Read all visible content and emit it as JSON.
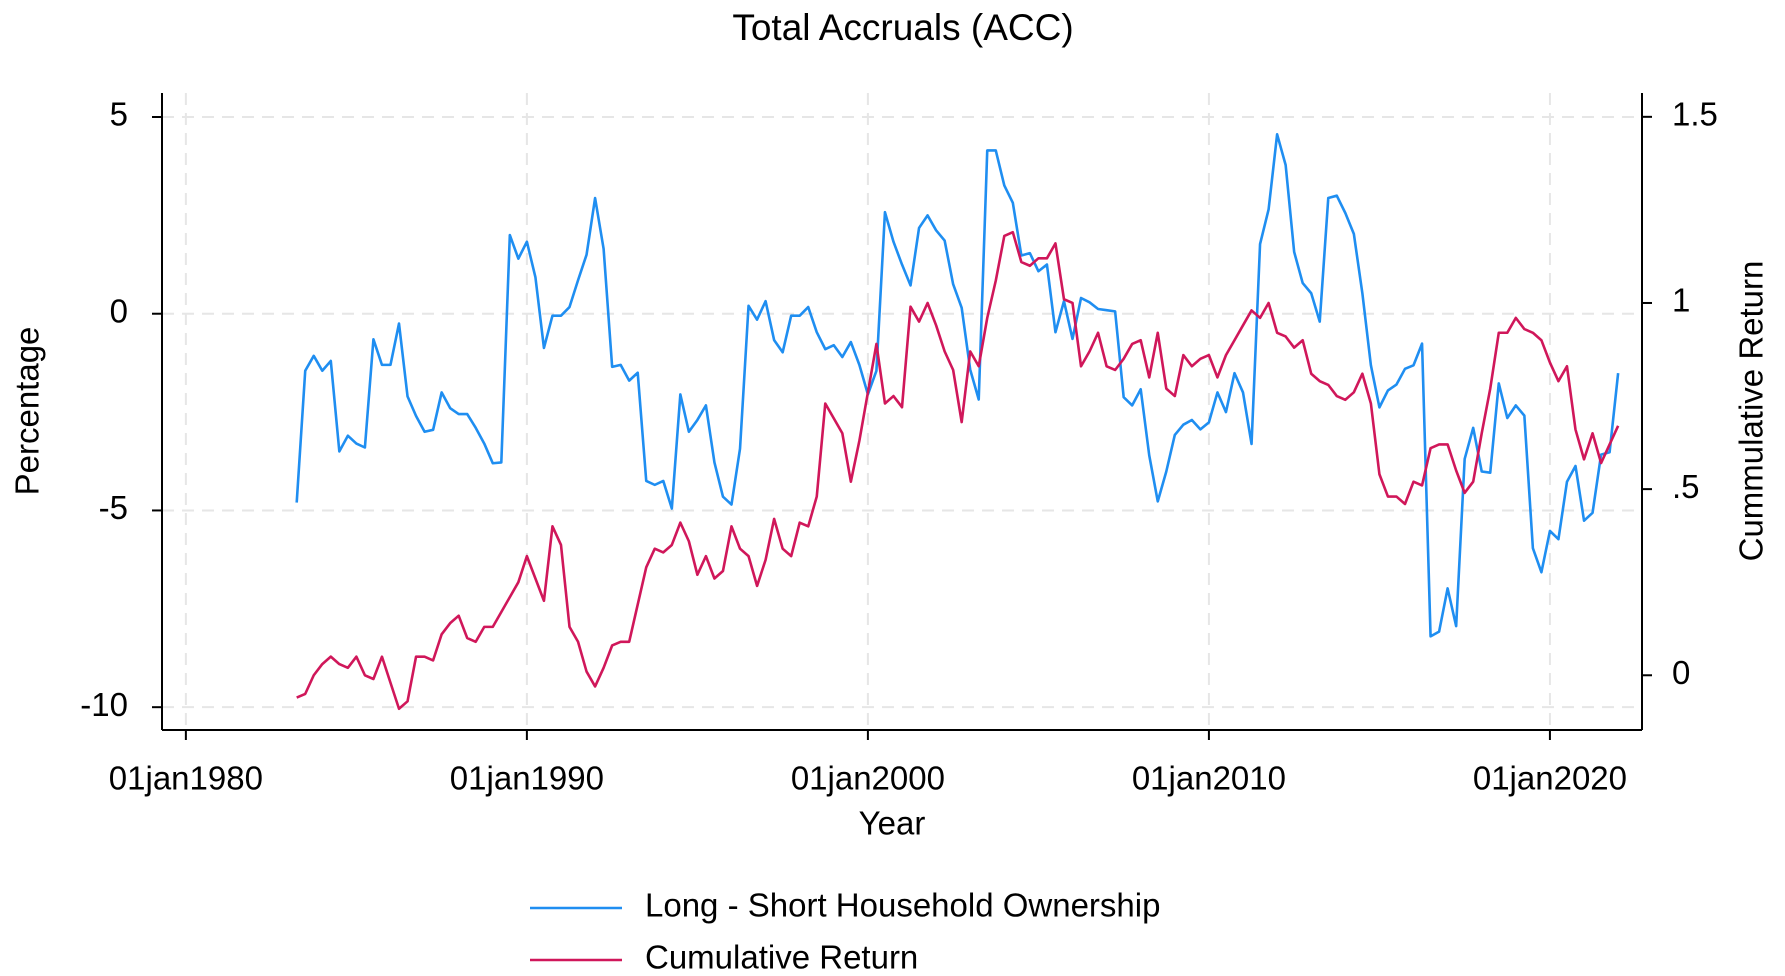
{
  "chart_data": {
    "type": "line",
    "title": "Total Accruals (ACC)",
    "x_label": "Year",
    "y_label": "Percentage",
    "y2_label": "Cummulative Return",
    "xlim": [
      1979.3,
      2022.7
    ],
    "ylim": [
      -10.58,
      5.61
    ],
    "y2lim": [
      -0.147,
      1.564
    ],
    "xticks": [
      {
        "value": 1980,
        "label": "01jan1980"
      },
      {
        "value": 1990,
        "label": "01jan1990"
      },
      {
        "value": 2000,
        "label": "01jan2000"
      },
      {
        "value": 2010,
        "label": "01jan2010"
      },
      {
        "value": 2020,
        "label": "01jan2020"
      }
    ],
    "yticks": [
      5,
      0,
      -5,
      -10
    ],
    "y2ticks": [
      1.5,
      1,
      {
        "value": 0.5,
        "label": ".5"
      },
      0
    ],
    "grid": true,
    "legend": "bottom",
    "x": [
      1983.25,
      1983.5,
      1983.75,
      1984,
      1984.25,
      1984.5,
      1984.75,
      1985,
      1985.25,
      1985.5,
      1985.75,
      1986,
      1986.25,
      1986.5,
      1986.75,
      1987,
      1987.25,
      1987.5,
      1987.75,
      1988,
      1988.25,
      1988.5,
      1988.75,
      1989,
      1989.25,
      1989.5,
      1989.75,
      1990,
      1990.25,
      1990.5,
      1990.75,
      1991,
      1991.25,
      1991.5,
      1991.75,
      1992,
      1992.25,
      1992.5,
      1992.75,
      1993,
      1993.25,
      1993.5,
      1993.75,
      1994,
      1994.25,
      1994.5,
      1994.75,
      1995,
      1995.25,
      1995.5,
      1995.75,
      1996,
      1996.25,
      1996.5,
      1996.75,
      1997,
      1997.25,
      1997.5,
      1997.75,
      1998,
      1998.25,
      1998.5,
      1998.75,
      1999,
      1999.25,
      1999.5,
      1999.75,
      2000,
      2000.25,
      2000.5,
      2000.75,
      2001,
      2001.25,
      2001.5,
      2001.75,
      2002,
      2002.25,
      2002.5,
      2002.75,
      2003,
      2003.25,
      2003.5,
      2003.75,
      2004,
      2004.25,
      2004.5,
      2004.75,
      2005,
      2005.25,
      2005.5,
      2005.75,
      2006,
      2006.25,
      2006.5,
      2006.75,
      2007,
      2007.25,
      2007.5,
      2007.75,
      2008,
      2008.25,
      2008.5,
      2008.75,
      2009,
      2009.25,
      2009.5,
      2009.75,
      2010,
      2010.25,
      2010.5,
      2010.75,
      2011,
      2011.25,
      2011.5,
      2011.75,
      2012,
      2012.25,
      2012.5,
      2012.75,
      2013,
      2013.25,
      2013.5,
      2013.75,
      2014,
      2014.25,
      2014.5,
      2014.75,
      2015,
      2015.25,
      2015.5,
      2015.75,
      2016,
      2016.25,
      2016.5,
      2016.75,
      2017,
      2017.25,
      2017.5,
      2017.75,
      2018,
      2018.25,
      2018.5,
      2018.75,
      2019,
      2019.25,
      2019.5,
      2019.75,
      2020,
      2020.25,
      2020.5,
      2020.75,
      2021,
      2021.25,
      2021.5,
      2021.75,
      2022
    ],
    "series": [
      {
        "name": "Long - Short Household Ownership",
        "color": "#1f8ef1",
        "axis": "y",
        "values": [
          -4.8,
          -1.45,
          -1.07,
          -1.45,
          -1.2,
          -3.5,
          -3.1,
          -3.3,
          -3.4,
          -0.65,
          -1.3,
          -1.3,
          -0.25,
          -2.1,
          -2.6,
          -3.0,
          -2.95,
          -2.0,
          -2.4,
          -2.55,
          -2.55,
          -2.9,
          -3.3,
          -3.8,
          -3.78,
          2.0,
          1.4,
          1.83,
          0.93,
          -0.87,
          -0.05,
          -0.05,
          0.17,
          0.85,
          1.5,
          2.94,
          1.65,
          -1.35,
          -1.3,
          -1.7,
          -1.5,
          -4.25,
          -4.35,
          -4.25,
          -4.95,
          -2.05,
          -3.0,
          -2.7,
          -2.33,
          -3.78,
          -4.65,
          -4.85,
          -3.43,
          0.2,
          -0.15,
          0.32,
          -0.67,
          -0.98,
          -0.05,
          -0.05,
          0.17,
          -0.47,
          -0.9,
          -0.8,
          -1.1,
          -0.72,
          -1.3,
          -2.05,
          -1.45,
          2.58,
          1.83,
          1.25,
          0.72,
          2.18,
          2.5,
          2.12,
          1.86,
          0.75,
          0.15,
          -1.42,
          -2.18,
          4.15,
          4.15,
          3.26,
          2.82,
          1.48,
          1.54,
          1.08,
          1.25,
          -0.47,
          0.32,
          -0.64,
          0.4,
          0.29,
          0.12,
          0.09,
          0.06,
          -2.12,
          -2.33,
          -1.92,
          -3.6,
          -4.77,
          -4.01,
          -3.08,
          -2.82,
          -2.7,
          -2.94,
          -2.76,
          -2.0,
          -2.5,
          -1.51,
          -2.0,
          -3.31,
          1.77,
          2.65,
          4.56,
          3.78,
          1.57,
          0.78,
          0.52,
          -0.2,
          2.94,
          3.0,
          2.56,
          2.03,
          0.52,
          -1.31,
          -2.38,
          -1.95,
          -1.8,
          -1.4,
          -1.31,
          -0.76,
          -8.2,
          -8.08,
          -6.98,
          -7.94,
          -3.69,
          -2.9,
          -4.01,
          -4.04,
          -1.77,
          -2.65,
          -2.33,
          -2.59,
          -5.96,
          -6.57,
          -5.52,
          -5.73,
          -4.27,
          -3.87,
          -5.26,
          -5.06,
          -3.58,
          -3.52,
          -1.51
        ]
      },
      {
        "name": "Cumulative Return",
        "color": "#d0175a",
        "axis": "y2",
        "values": [
          -0.06,
          -0.05,
          0.0,
          0.03,
          0.05,
          0.03,
          0.02,
          0.05,
          0.0,
          -0.01,
          0.05,
          -0.02,
          -0.09,
          -0.07,
          0.05,
          0.05,
          0.04,
          0.11,
          0.14,
          0.16,
          0.1,
          0.09,
          0.13,
          0.13,
          0.17,
          0.21,
          0.25,
          0.32,
          0.26,
          0.2,
          0.4,
          0.35,
          0.13,
          0.09,
          0.01,
          -0.03,
          0.02,
          0.08,
          0.09,
          0.09,
          0.19,
          0.29,
          0.34,
          0.33,
          0.35,
          0.41,
          0.36,
          0.27,
          0.32,
          0.26,
          0.28,
          0.4,
          0.34,
          0.32,
          0.24,
          0.31,
          0.42,
          0.34,
          0.32,
          0.41,
          0.4,
          0.48,
          0.73,
          0.69,
          0.65,
          0.52,
          0.63,
          0.76,
          0.89,
          0.73,
          0.75,
          0.72,
          0.99,
          0.95,
          1.0,
          0.94,
          0.87,
          0.82,
          0.68,
          0.87,
          0.83,
          0.96,
          1.06,
          1.18,
          1.19,
          1.11,
          1.1,
          1.12,
          1.12,
          1.16,
          1.01,
          1.0,
          0.83,
          0.87,
          0.92,
          0.83,
          0.82,
          0.85,
          0.89,
          0.9,
          0.8,
          0.92,
          0.77,
          0.75,
          0.86,
          0.83,
          0.85,
          0.86,
          0.8,
          0.86,
          0.9,
          0.94,
          0.98,
          0.96,
          1.0,
          0.92,
          0.91,
          0.88,
          0.9,
          0.81,
          0.79,
          0.78,
          0.75,
          0.74,
          0.76,
          0.81,
          0.73,
          0.54,
          0.48,
          0.48,
          0.46,
          0.52,
          0.51,
          0.61,
          0.62,
          0.62,
          0.55,
          0.49,
          0.52,
          0.65,
          0.77,
          0.92,
          0.92,
          0.96,
          0.93,
          0.92,
          0.9,
          0.84,
          0.79,
          0.83,
          0.66,
          0.58,
          0.65,
          0.57,
          0.62,
          0.67
        ]
      }
    ]
  }
}
